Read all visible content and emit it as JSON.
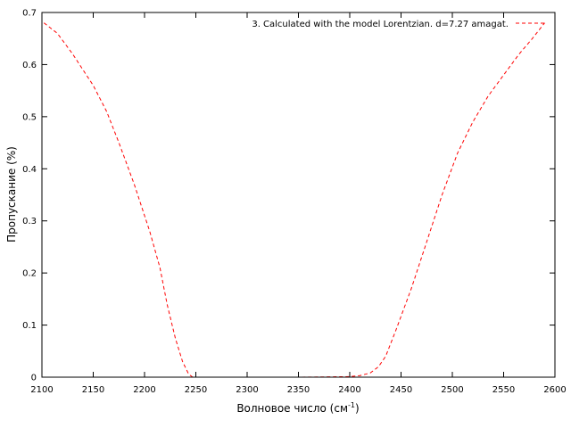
{
  "chart_data": {
    "type": "line",
    "xlabel": "Волновое число (см",
    "xlabel_sup": "-1",
    "xlabel_close": ")",
    "ylabel": "Пропускание (%)",
    "xlim": [
      2100,
      2600
    ],
    "ylim": [
      0,
      0.7
    ],
    "x_ticks": [
      "2100",
      "2150",
      "2200",
      "2250",
      "2300",
      "2350",
      "2400",
      "2450",
      "2500",
      "2550",
      "2600"
    ],
    "y_ticks": [
      "0",
      "0.1",
      "0.2",
      "0.3",
      "0.4",
      "0.5",
      "0.6",
      "0.7"
    ],
    "grid": false,
    "legend_position": "top-right",
    "series": [
      {
        "name": "3. Calculated with the model Lorentzian. d=7.27 amagat.",
        "color": "#ff0000",
        "style": "dashed",
        "x": [
          2102,
          2115,
          2130,
          2140,
          2150,
          2163,
          2175,
          2190,
          2205,
          2215,
          2222,
          2230,
          2237,
          2243,
          2247,
          2250,
          2260,
          2300,
          2350,
          2400,
          2410,
          2420,
          2428,
          2435,
          2445,
          2460,
          2475,
          2490,
          2505,
          2520,
          2535,
          2550,
          2565,
          2578,
          2590
        ],
        "y": [
          0.68,
          0.66,
          0.62,
          0.59,
          0.56,
          0.51,
          0.45,
          0.37,
          0.28,
          0.21,
          0.14,
          0.075,
          0.03,
          0.006,
          0.0,
          0.0,
          0.0,
          0.0,
          0.0,
          0.001,
          0.003,
          0.008,
          0.02,
          0.04,
          0.09,
          0.17,
          0.26,
          0.35,
          0.43,
          0.49,
          0.54,
          0.58,
          0.62,
          0.65,
          0.68
        ]
      }
    ]
  }
}
